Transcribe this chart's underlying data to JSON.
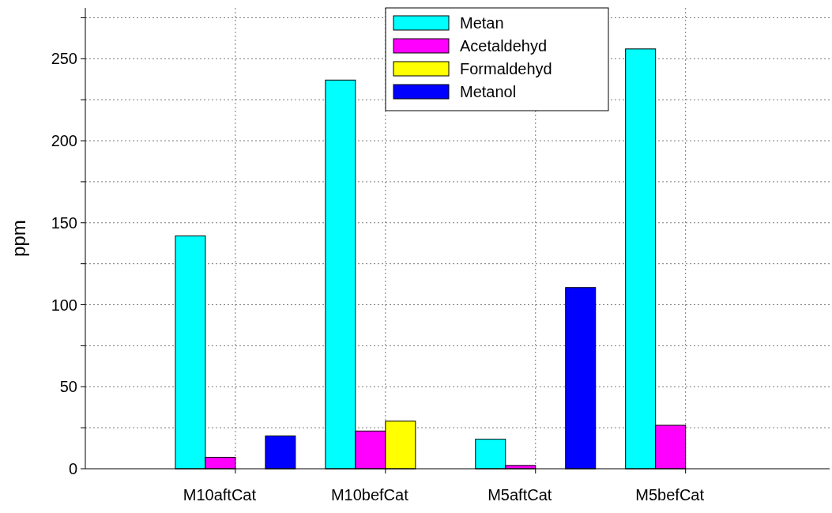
{
  "chart_data": {
    "type": "bar",
    "ylabel": "ppm",
    "categories": [
      "M10aftCat",
      "M10befCat",
      "M5aftCat",
      "M5befCat"
    ],
    "series": [
      {
        "name": "Metan",
        "color": "#00ffff",
        "values": [
          142,
          237,
          18,
          256
        ]
      },
      {
        "name": "Acetaldehyd",
        "color": "#ff00ff",
        "values": [
          7,
          23,
          2,
          26.5
        ]
      },
      {
        "name": "Formaldehyd",
        "color": "#ffff00",
        "values": [
          0,
          29,
          0,
          0
        ]
      },
      {
        "name": "Metanol",
        "color": "#0000ff",
        "values": [
          20,
          0,
          110.5,
          0
        ]
      }
    ],
    "ylim": [
      0,
      281
    ],
    "yticks": [
      0,
      {
        "value": 25,
        "label": null
      },
      50,
      {
        "value": 75,
        "label": null
      },
      100,
      {
        "value": 125,
        "label": null
      },
      150,
      {
        "value": 175,
        "label": null
      },
      200,
      {
        "value": 225,
        "label": null
      },
      250,
      {
        "value": 275,
        "label": null
      }
    ],
    "grid": true,
    "legend": "top"
  }
}
